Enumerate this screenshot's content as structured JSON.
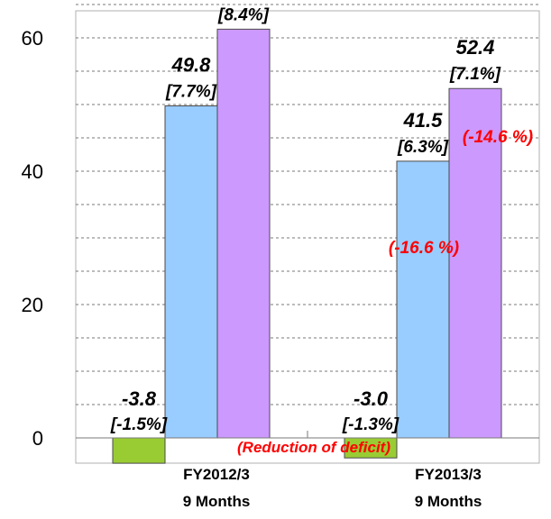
{
  "chart_data": {
    "type": "bar",
    "categories": [
      {
        "line1": "FY2012/3",
        "line2": "9 Months"
      },
      {
        "line1": "FY2013/3",
        "line2": "9 Months"
      }
    ],
    "series": [
      {
        "color": "#99cc33",
        "values": [
          -3.8,
          -3.0
        ],
        "value_labels": [
          "-3.8",
          "-3.0"
        ],
        "pct_labels": [
          "[-1.5%]",
          "[-1.3%]"
        ]
      },
      {
        "color": "#99ccff",
        "values": [
          49.8,
          41.5
        ],
        "value_labels": [
          "49.8",
          "41.5"
        ],
        "pct_labels": [
          "[7.7%]",
          "[6.3%]"
        ]
      },
      {
        "color": "#cc99ff",
        "values": [
          61.3,
          52.4
        ],
        "value_labels": [
          "61.3",
          "52.4"
        ],
        "pct_labels": [
          "[8.4%]",
          "[7.1%]"
        ]
      }
    ],
    "change_labels": {
      "blue_fy2013": "(-16.6 %)",
      "purple_fy2013": "(-14.6 %)"
    },
    "annotation": "(Reduction of deficit)",
    "yticks": [
      0,
      20,
      40,
      60
    ],
    "ylim": [
      -4,
      65
    ],
    "grid": "dashed-horizontal",
    "title": "",
    "xlabel": "",
    "ylabel": ""
  }
}
